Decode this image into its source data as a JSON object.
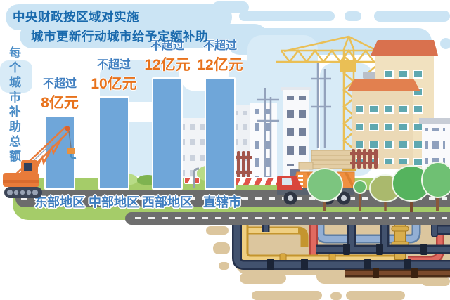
{
  "title": {
    "line1": "中央财政按区域对实施",
    "line2": "城市更新行动城市给予定额补助"
  },
  "y_axis_label": "每个城市补助总额",
  "chart_data": {
    "type": "bar",
    "title": "中央财政按区域对实施城市更新行动城市给予定额补助",
    "ylabel": "每个城市补助总额",
    "unit": "亿元",
    "categories": [
      "东部地区",
      "中部地区",
      "西部地区",
      "直辖市"
    ],
    "values": [
      8,
      10,
      12,
      12
    ],
    "bars": [
      {
        "category": "东部地区",
        "qualifier": "不超过",
        "amount": "8亿元",
        "value": 8
      },
      {
        "category": "中部地区",
        "qualifier": "不超过",
        "amount": "10亿元",
        "value": 10
      },
      {
        "category": "西部地区",
        "qualifier": "不超过",
        "amount": "12亿元",
        "value": 12
      },
      {
        "category": "直辖市",
        "qualifier": "不超过",
        "amount": "12亿元",
        "value": 12
      }
    ],
    "legend_position": "none",
    "grid": false
  },
  "palette": {
    "title_blue": "#1A6AAD",
    "label_blue": "#3F7EC0",
    "amount_orange": "#E8721C",
    "bar_blue": "#6FA6D9",
    "cloud_blue": "#CBE4F4",
    "grass_green": "#A5CC69",
    "road_gray": "#6C6C6C",
    "underground_tan": "#DCC69E"
  },
  "illustrations": [
    "crawler-crane-icon",
    "tower-crane-icon",
    "dump-truck-icon",
    "construction-buildings-icon",
    "trees-icon",
    "underground-pipes-icon",
    "road-icon",
    "safety-barrier-icon"
  ]
}
